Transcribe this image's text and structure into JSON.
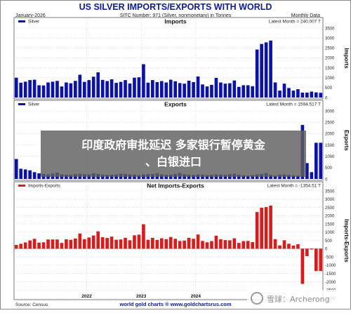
{
  "chart_data": {
    "type": "bar",
    "title": "US SILVER IMPORTS/EXPORTS WITH WORLD",
    "header_left": "January-2026",
    "header_center": "SITC Number: 971 (Silver, nonmonetary) in Tonnes",
    "header_right": "Monthly Data",
    "source": "Source: Census",
    "footer_center": "world gold charts ® www.goldchartsrus.com",
    "x_ticks": [
      "2022",
      "2023",
      "2024"
    ],
    "colors": {
      "imports": "#0b12a8",
      "exports": "#0b12a8",
      "net": "#d81c1c",
      "title": "#0b1a99",
      "frame_border": "#8a8a8a"
    },
    "panels": [
      {
        "panel_title": "Imports",
        "legend": "Silver",
        "latest": "Latest Month = 240.007 T",
        "ylabel": "Imports",
        "ylim": [
          0,
          3500
        ],
        "yticks": [
          "0",
          "500",
          "1000",
          "1500",
          "2000",
          "2500",
          "3000",
          "3500"
        ],
        "series": [
          {
            "name": "Silver",
            "color": "#0b12a8",
            "values": [
              1000,
              750,
              800,
              880,
              900,
              620,
              610,
              760,
              800,
              840,
              560,
              760,
              720,
              840,
              1150,
              790,
              880,
              1050,
              1270,
              890,
              830,
              920,
              740,
              790,
              880,
              710,
              1000,
              1020,
              1680,
              750,
              880,
              780,
              830,
              760,
              900,
              820,
              730,
              700,
              850,
              780,
              1060,
              660,
              560,
              640,
              990,
              760,
              700,
              720,
              860,
              540,
              620,
              620,
              570,
              2420,
              2700,
              2780,
              2870,
              760,
              350,
              700,
              480,
              350,
              420,
              250,
              250,
              300,
              260,
              240
            ]
          }
        ]
      },
      {
        "panel_title": "Exports",
        "legend": "Silver",
        "latest": "Latest Month = 1594.517 T",
        "ylabel": "Exports",
        "ylim": [
          0,
          3000
        ],
        "yticks": [
          "0",
          "500",
          "1000",
          "1500",
          "2000",
          "2500",
          "3000"
        ],
        "series": [
          {
            "name": "Silver",
            "color": "#0b12a8",
            "values": [
              880,
              450,
              420,
              380,
              300,
              250,
              220,
              200,
              240,
              280,
              210,
              190,
              180,
              220,
              230,
              210,
              200,
              250,
              220,
              190,
              180,
              190,
              200,
              230,
              220,
              200,
              190,
              170,
              200,
              210,
              220,
              250,
              200,
              180,
              190,
              220,
              260,
              210,
              190,
              180,
              200,
              190,
              170,
              180,
              200,
              190,
              180,
              210,
              230,
              190,
              160,
              150,
              170,
              200,
              220,
              260,
              180,
              150,
              190,
              200,
              180,
              160,
              150,
              2380,
              700,
              300,
              1594.517,
              1594.517
            ]
          }
        ]
      },
      {
        "panel_title": "Net Imports-Exports",
        "legend": "Imports-Exports",
        "latest": "Latest Month = -1354.51 T",
        "ylabel": "Imports-Exports",
        "ylim": [
          -3000,
          3500
        ],
        "yticks": [
          "-3000",
          "-2500",
          "-2000",
          "-1500",
          "-1000",
          "-500",
          "0",
          "500",
          "1000",
          "1500",
          "2000",
          "2500",
          "3000",
          "3500"
        ],
        "series": [
          {
            "name": "Imports-Exports",
            "color": "#d81c1c",
            "values": [
              230,
              300,
              380,
              500,
              600,
              370,
              390,
              560,
              560,
              560,
              350,
              570,
              540,
              620,
              920,
              580,
              680,
              800,
              1050,
              700,
              650,
              730,
              540,
              560,
              660,
              510,
              810,
              850,
              1480,
              540,
              660,
              530,
              630,
              580,
              710,
              600,
              470,
              490,
              660,
              600,
              860,
              470,
              390,
              460,
              790,
              570,
              520,
              510,
              630,
              350,
              460,
              470,
              400,
              2220,
              2480,
              2520,
              2610,
              580,
              200,
              510,
              300,
              190,
              270,
              -2130,
              -450,
              -50,
              -1354.51,
              -1354.51
            ]
          }
        ]
      }
    ]
  },
  "overlay": {
    "banner_line1": "印度政府审批延迟 多家银行暂停黄金",
    "banner_line2": "、白银进口",
    "watermark_text": "雪球：Archerong"
  }
}
